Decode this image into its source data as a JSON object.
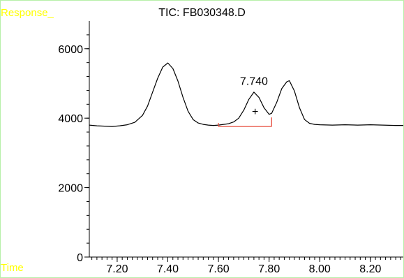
{
  "chart_data": {
    "type": "line",
    "title": "TIC: FB030348.D",
    "ylabel": "Response_",
    "xlabel": "Time",
    "xlim": [
      7.09,
      8.33
    ],
    "ylim": [
      0,
      6800
    ],
    "x_ticks": [
      7.2,
      7.4,
      7.6,
      7.8,
      8.0,
      8.2
    ],
    "x_tick_labels": [
      "7.20",
      "7.40",
      "7.60",
      "7.80",
      "8.00",
      "8.20"
    ],
    "y_ticks": [
      0,
      2000,
      4000,
      6000
    ],
    "y_tick_labels": [
      "0",
      "2000",
      "4000",
      "6000"
    ],
    "series": [
      {
        "x": [
          7.09,
          7.12,
          7.15,
          7.18,
          7.21,
          7.24,
          7.27,
          7.3,
          7.32,
          7.34,
          7.36,
          7.38,
          7.4,
          7.42,
          7.44,
          7.46,
          7.48,
          7.5,
          7.52,
          7.54,
          7.56,
          7.58,
          7.6,
          7.62,
          7.64,
          7.66,
          7.68,
          7.7,
          7.72,
          7.74,
          7.76,
          7.78,
          7.8,
          7.81,
          7.83,
          7.85,
          7.87,
          7.88,
          7.9,
          7.92,
          7.94,
          7.96,
          7.98,
          8.0,
          8.05,
          8.1,
          8.15,
          8.2,
          8.25,
          8.3,
          8.33
        ],
        "values": [
          3800,
          3780,
          3770,
          3760,
          3780,
          3810,
          3880,
          4080,
          4350,
          4750,
          5150,
          5470,
          5590,
          5430,
          5070,
          4600,
          4200,
          3960,
          3860,
          3820,
          3800,
          3790,
          3800,
          3820,
          3840,
          3890,
          4000,
          4230,
          4540,
          4750,
          4600,
          4300,
          4110,
          4140,
          4450,
          4850,
          5050,
          5080,
          4780,
          4300,
          3960,
          3850,
          3820,
          3810,
          3800,
          3810,
          3800,
          3810,
          3800,
          3790,
          3790
        ]
      }
    ],
    "peak_label": {
      "text": "7.740",
      "x": 7.74,
      "y": 4960
    },
    "peak_marker": {
      "symbol": "+",
      "x": 7.745,
      "y": 4080
    },
    "baseline": {
      "x": [
        7.6,
        7.81
      ],
      "y": [
        3760,
        3760
      ],
      "color": "#e74c3c"
    },
    "grid": false,
    "line_color": "#000000"
  }
}
